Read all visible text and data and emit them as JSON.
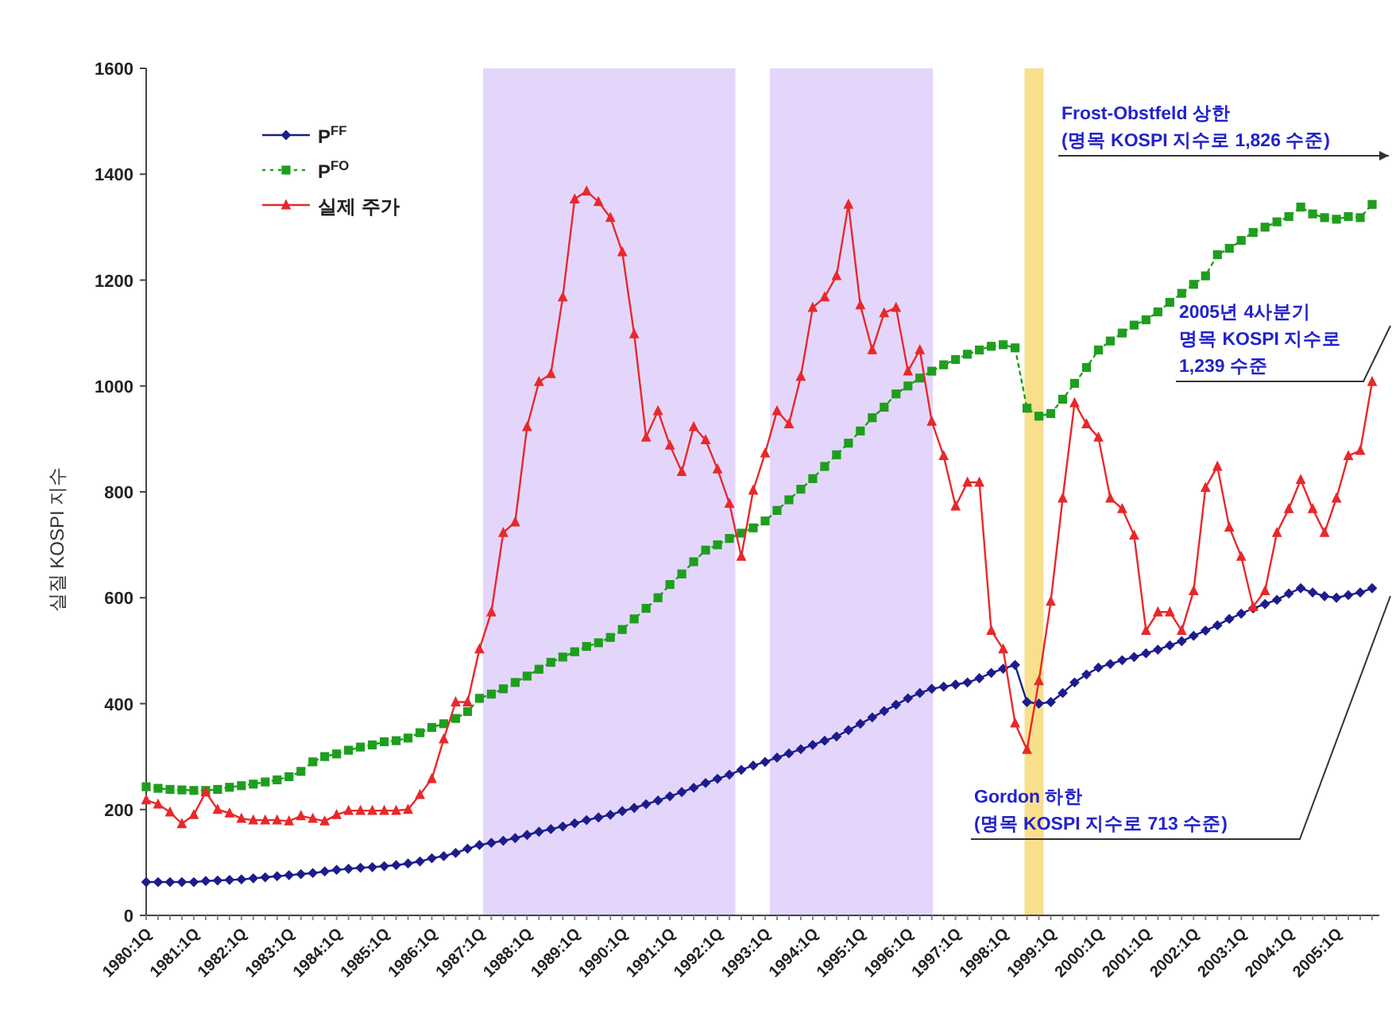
{
  "chart_data": {
    "type": "line",
    "ylabel": "실질 KOSPI 지수",
    "categories": [
      "1980:1Q",
      null,
      null,
      null,
      "1981:1Q",
      null,
      null,
      null,
      "1982:1Q",
      null,
      null,
      null,
      "1983:1Q",
      null,
      null,
      null,
      "1984:1Q",
      null,
      null,
      null,
      "1985:1Q",
      null,
      null,
      null,
      "1986:1Q",
      null,
      null,
      null,
      "1987:1Q",
      null,
      null,
      null,
      "1988:1Q",
      null,
      null,
      null,
      "1989:1Q",
      null,
      null,
      null,
      "1990:1Q",
      null,
      null,
      null,
      "1991:1Q",
      null,
      null,
      null,
      "1992:1Q",
      null,
      null,
      null,
      "1993:1Q",
      null,
      null,
      null,
      "1994:1Q",
      null,
      null,
      null,
      "1995:1Q",
      null,
      null,
      null,
      "1996:1Q",
      null,
      null,
      null,
      "1997:1Q",
      null,
      null,
      null,
      "1998:1Q",
      null,
      null,
      null,
      "1999:1Q",
      null,
      null,
      null,
      "2000:1Q",
      null,
      null,
      null,
      "2001:1Q",
      null,
      null,
      null,
      "2002:1Q",
      null,
      null,
      null,
      "2003:1Q",
      null,
      null,
      null,
      "2004:1Q",
      null,
      null,
      null,
      "2005:1Q",
      null,
      null,
      null
    ],
    "series": [
      {
        "name": "P$^{FF}$",
        "color": "#1c1c8c",
        "marker": "diamond",
        "line_style": "solid",
        "values": [
          63,
          63,
          63,
          63,
          63,
          65,
          66,
          67,
          68,
          70,
          72,
          74,
          76,
          78,
          80,
          83,
          86,
          88,
          90,
          91,
          93,
          95,
          98,
          102,
          108,
          112,
          118,
          126,
          133,
          137,
          141,
          146,
          152,
          158,
          163,
          168,
          174,
          180,
          185,
          190,
          197,
          203,
          210,
          217,
          225,
          233,
          241,
          250,
          258,
          266,
          275,
          283,
          290,
          298,
          306,
          314,
          322,
          330,
          338,
          350,
          362,
          374,
          386,
          398,
          410,
          420,
          428,
          432,
          436,
          440,
          448,
          458,
          466,
          473,
          403,
          400,
          403,
          420,
          440,
          455,
          468,
          475,
          482,
          488,
          495,
          502,
          510,
          518,
          528,
          538,
          548,
          560,
          570,
          580,
          588,
          596,
          608,
          618,
          610,
          603,
          600,
          605,
          610,
          618
        ]
      },
      {
        "name": "P$^{FO}$",
        "color": "#1e9e1e",
        "marker": "square",
        "line_style": "dotted",
        "values": [
          243,
          240,
          238,
          237,
          236,
          236,
          238,
          242,
          245,
          248,
          252,
          256,
          262,
          272,
          290,
          300,
          305,
          312,
          318,
          322,
          328,
          330,
          335,
          345,
          355,
          362,
          372,
          385,
          410,
          418,
          428,
          440,
          452,
          465,
          478,
          488,
          498,
          508,
          515,
          525,
          540,
          560,
          580,
          600,
          625,
          645,
          668,
          690,
          700,
          712,
          722,
          732,
          745,
          765,
          785,
          805,
          825,
          848,
          870,
          892,
          915,
          940,
          960,
          985,
          1000,
          1015,
          1028,
          1040,
          1050,
          1060,
          1068,
          1075,
          1078,
          1072,
          958,
          943,
          948,
          975,
          1005,
          1035,
          1068,
          1085,
          1100,
          1115,
          1125,
          1140,
          1158,
          1175,
          1192,
          1208,
          1248,
          1260,
          1275,
          1290,
          1300,
          1310,
          1320,
          1338,
          1325,
          1318,
          1315,
          1320,
          1318,
          1343
        ]
      },
      {
        "name": "실제 주가",
        "color": "#e8282a",
        "marker": "triangle",
        "line_style": "solid",
        "values": [
          218,
          210,
          195,
          173,
          190,
          233,
          200,
          193,
          183,
          180,
          180,
          180,
          178,
          188,
          183,
          178,
          190,
          198,
          198,
          198,
          198,
          198,
          200,
          228,
          258,
          333,
          403,
          403,
          503,
          573,
          723,
          743,
          923,
          1008,
          1023,
          1168,
          1353,
          1368,
          1348,
          1318,
          1253,
          1098,
          903,
          953,
          888,
          838,
          923,
          898,
          843,
          778,
          678,
          803,
          873,
          953,
          928,
          1018,
          1148,
          1168,
          1208,
          1343,
          1153,
          1068,
          1138,
          1148,
          1028,
          1068,
          933,
          868,
          773,
          818,
          818,
          538,
          503,
          363,
          313,
          443,
          593,
          788,
          968,
          928,
          903,
          788,
          768,
          718,
          538,
          573,
          573,
          538,
          613,
          808,
          848,
          733,
          678,
          583,
          613,
          723,
          768,
          823,
          768,
          723,
          788,
          868,
          878,
          1008
        ]
      }
    ],
    "ylim": [
      0,
      1600
    ],
    "yticks": [
      0,
      200,
      400,
      600,
      800,
      1000,
      1200,
      1400,
      1600
    ],
    "annotations": [
      "Frost-Obstfeld 상한\n(명목 KOSPI 지수로 1,826 수준)",
      "2005년 4사분기\n명목 KOSPI 지수로\n1,239 수준",
      "Gordon 하한\n(명목 KOSPI 지수로 713 수준)"
    ],
    "legend": "top left"
  }
}
